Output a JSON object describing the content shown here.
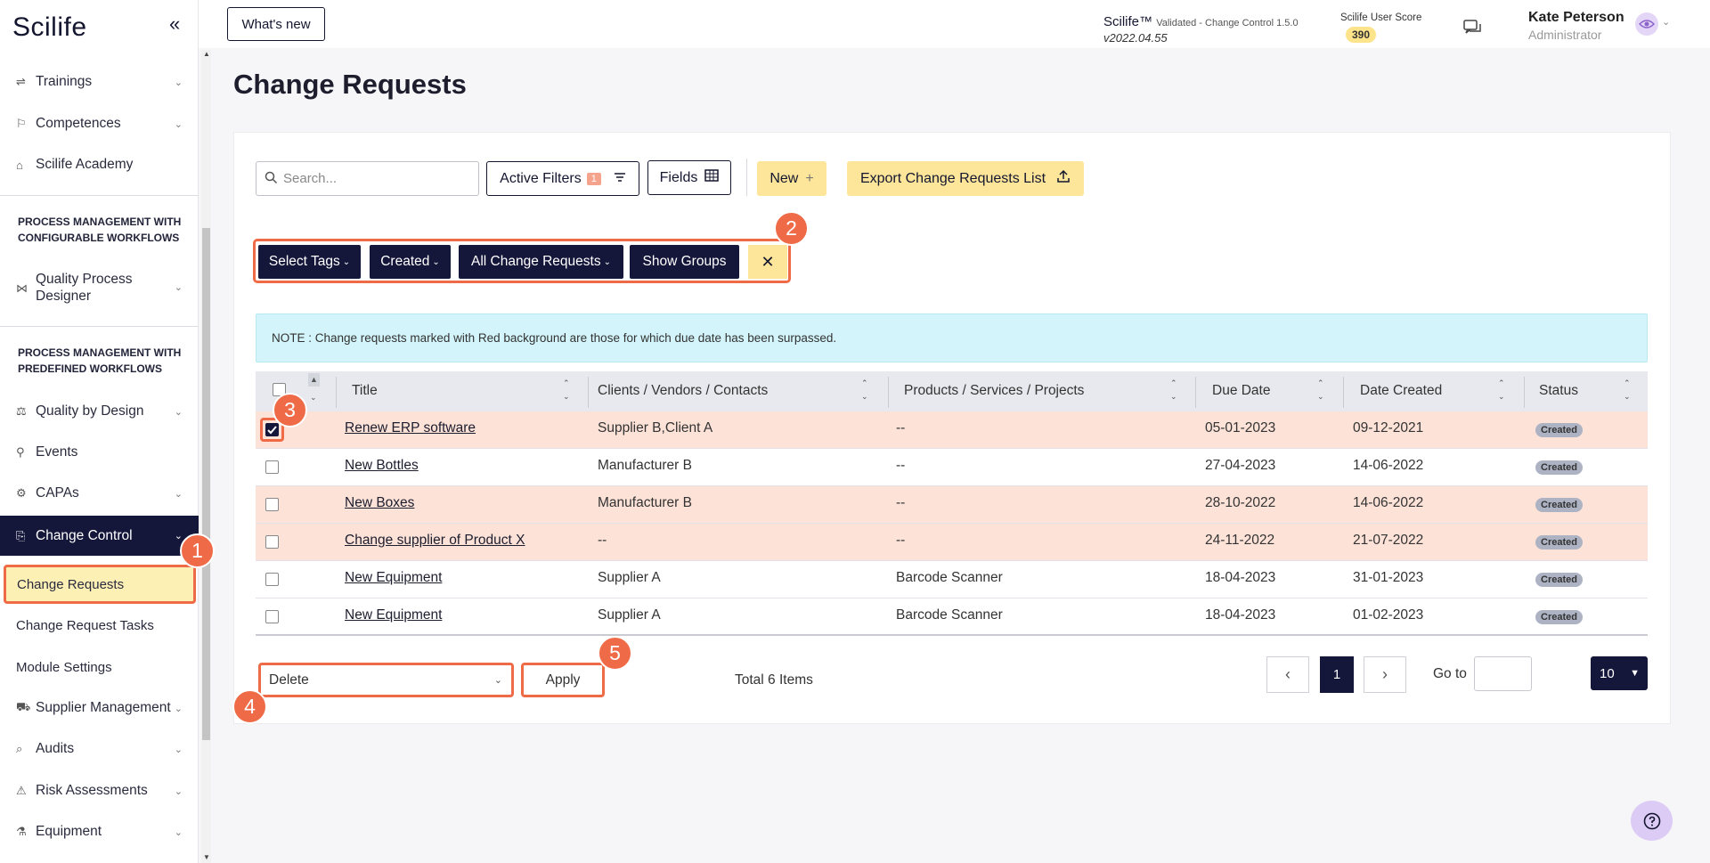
{
  "app": {
    "logo": "Scilife",
    "collapse_icon": "double-chevron-left-icon"
  },
  "sidebar": {
    "items_top": [
      {
        "label": "Trainings",
        "icon": "training-icon"
      },
      {
        "label": "Competences",
        "icon": "competences-icon"
      },
      {
        "label": "Scilife Academy",
        "icon": "academy-icon"
      }
    ],
    "section_configurable": "PROCESS MANAGEMENT WITH CONFIGURABLE WORKFLOWS",
    "quality_process_designer": "Quality Process Designer",
    "section_predefined": "PROCESS MANAGEMENT WITH PREDEFINED WORKFLOWS",
    "items_predefined": [
      {
        "label": "Quality by Design",
        "icon": "quality-design-icon"
      },
      {
        "label": "Events",
        "icon": "events-icon"
      },
      {
        "label": "CAPAs",
        "icon": "capas-icon"
      }
    ],
    "active_item": "Change Control",
    "sub_items": [
      "Change Requests",
      "Change Request Tasks",
      "Module Settings"
    ],
    "items_bottom": [
      {
        "label": "Supplier Management",
        "icon": "supplier-icon"
      },
      {
        "label": "Audits",
        "icon": "audits-icon"
      },
      {
        "label": "Risk Assessments",
        "icon": "risk-icon"
      },
      {
        "label": "Equipment",
        "icon": "equipment-icon"
      }
    ]
  },
  "topbar": {
    "whats_new": "What's new",
    "product": "Scilife™",
    "product_sub": "Validated - Change Control 1.5.0",
    "version": "v2022.04.55",
    "score_label": "Scilife User Score",
    "score_value": "390",
    "user_name": "Kate Peterson",
    "user_role": "Administrator"
  },
  "page": {
    "title": "Change Requests"
  },
  "toolbar": {
    "search_placeholder": "Search...",
    "active_filters": "Active Filters",
    "active_filters_count": "1",
    "fields": "Fields",
    "new": "New",
    "new_icon": "+",
    "export": "Export Change Requests List"
  },
  "filters": {
    "chips": [
      "Select Tags",
      "Created",
      "All Change Requests",
      "Show Groups"
    ],
    "clear": "✕"
  },
  "note": "NOTE : Change requests marked with Red background are those for which due date has been surpassed.",
  "table": {
    "columns": [
      "Title",
      "Clients / Vendors / Contacts",
      "Products / Services / Projects",
      "Due Date",
      "Date Created",
      "Status"
    ],
    "rows": [
      {
        "title": "Renew ERP software",
        "clients": "Supplier B,Client A",
        "products": "--",
        "due": "05-01-2023",
        "created": "09-12-2021",
        "status": "Created",
        "overdue": true,
        "checked": true
      },
      {
        "title": "New Bottles",
        "clients": "Manufacturer B",
        "products": "--",
        "due": "27-04-2023",
        "created": "14-06-2022",
        "status": "Created",
        "overdue": false,
        "checked": false
      },
      {
        "title": "New Boxes",
        "clients": "Manufacturer B",
        "products": "--",
        "due": "28-10-2022",
        "created": "14-06-2022",
        "status": "Created",
        "overdue": true,
        "checked": false
      },
      {
        "title": "Change supplier of Product X",
        "clients": "--",
        "products": "--",
        "due": "24-11-2022",
        "created": "21-07-2022",
        "status": "Created",
        "overdue": true,
        "checked": false
      },
      {
        "title": "New Equipment",
        "clients": "Supplier A",
        "products": "Barcode Scanner",
        "due": "18-04-2023",
        "created": "31-01-2023",
        "status": "Created",
        "overdue": false,
        "checked": false
      },
      {
        "title": "New Equipment",
        "clients": "Supplier A",
        "products": "Barcode Scanner",
        "due": "18-04-2023",
        "created": "01-02-2023",
        "status": "Created",
        "overdue": false,
        "checked": false
      }
    ]
  },
  "bulk": {
    "action": "Delete",
    "apply": "Apply"
  },
  "pagination": {
    "total": "Total 6 Items",
    "prev": "‹",
    "current": "1",
    "next": "›",
    "goto_label": "Go to",
    "page_size": "10"
  },
  "markers": [
    "1",
    "2",
    "3",
    "4",
    "5"
  ],
  "colors": {
    "navy": "#14163a",
    "accent_orange": "#ef6a47",
    "yellow": "#fde69a",
    "overdue_row": "#fde2d8",
    "note_bg": "#d2f4fa"
  }
}
